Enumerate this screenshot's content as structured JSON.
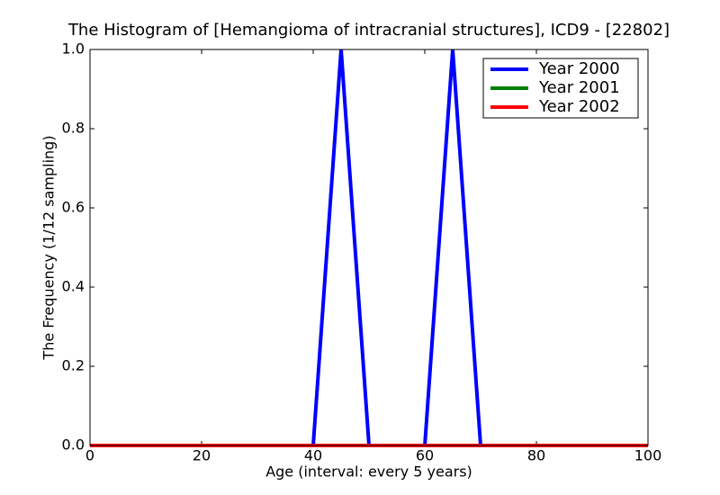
{
  "chart_data": {
    "type": "line",
    "title": "The Histogram of [Hemangioma of intracranial structures], ICD9 - [22802]",
    "x_label": "Age (interval: every 5 years)",
    "y_label": "The Frequency (1/12 sampling)",
    "x": [
      0,
      5,
      10,
      15,
      20,
      25,
      30,
      35,
      40,
      45,
      50,
      55,
      60,
      65,
      70,
      75,
      80,
      85,
      90,
      95,
      100
    ],
    "series": [
      {
        "name": "Year 2000",
        "color": "#0000ff",
        "values": [
          0,
          0,
          0,
          0,
          0,
          0,
          0,
          0,
          0,
          1,
          0,
          0,
          0,
          1,
          0,
          0,
          0,
          0,
          0,
          0,
          0
        ]
      },
      {
        "name": "Year 2001",
        "color": "#008000",
        "values": [
          0,
          0,
          0,
          0,
          0,
          0,
          0,
          0,
          0,
          0,
          0,
          0,
          0,
          0,
          0,
          0,
          0,
          0,
          0,
          0,
          0
        ]
      },
      {
        "name": "Year 2002",
        "color": "#ff0000",
        "values": [
          0,
          0,
          0,
          0,
          0,
          0,
          0,
          0,
          0,
          0,
          0,
          0,
          0,
          0,
          0,
          0,
          0,
          0,
          0,
          0,
          0
        ]
      }
    ],
    "xlim": [
      0,
      100
    ],
    "xticks": [
      0,
      20,
      40,
      60,
      80,
      100
    ],
    "ylim": [
      0,
      1
    ],
    "yticks": [
      {
        "value": 0,
        "label": "0.0"
      },
      0.2,
      0.4,
      0.6,
      0.8,
      {
        "value": 1,
        "label": "1.0"
      }
    ],
    "legend": "upper right"
  }
}
